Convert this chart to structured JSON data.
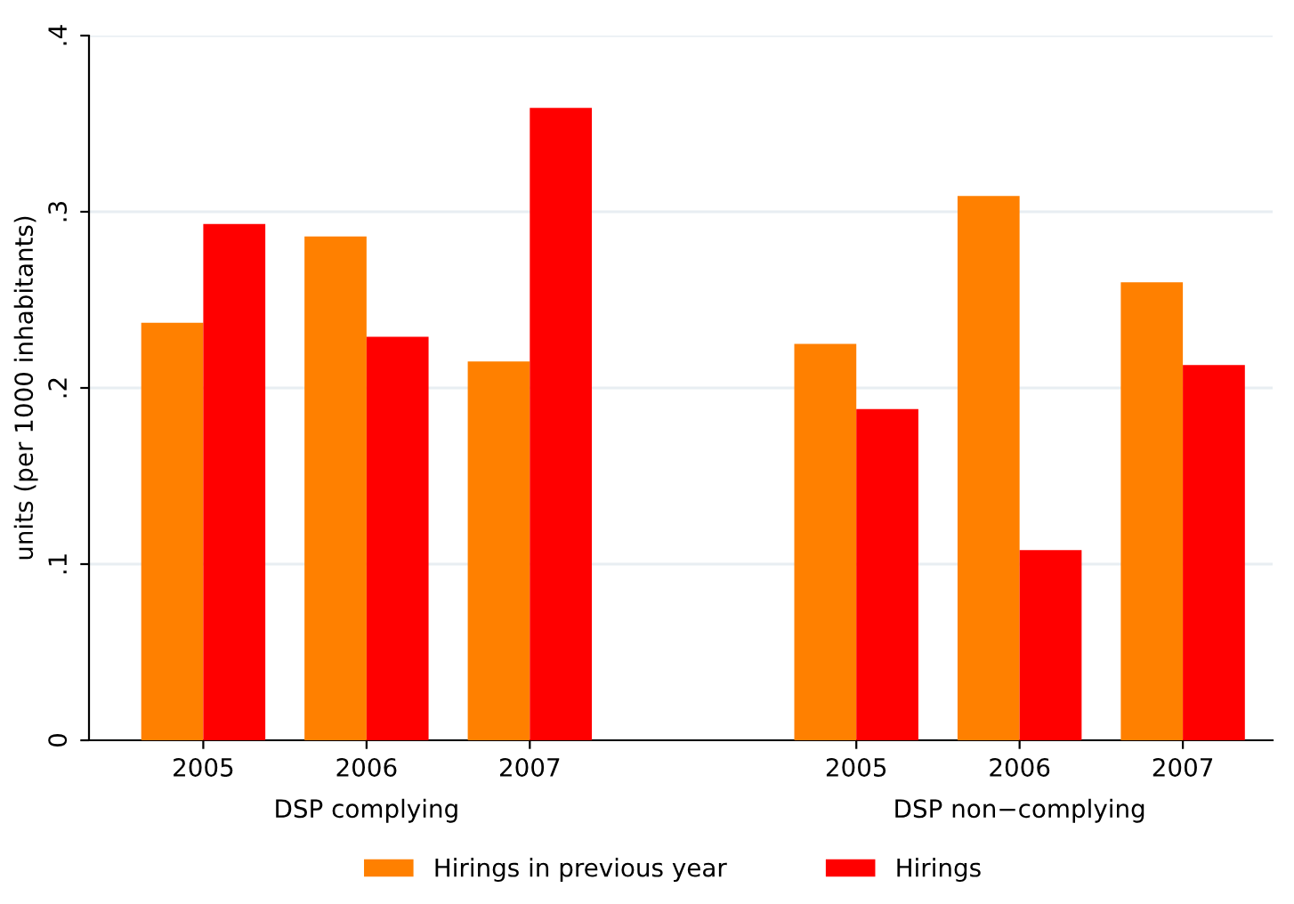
{
  "chart_data": {
    "type": "bar",
    "ylabel": "units (per 1000 inhabitants)",
    "categories": [
      "2005",
      "2006",
      "2007",
      null,
      "2005",
      "2006",
      "2007"
    ],
    "series": [
      {
        "name": "Hirings in previous year",
        "color": "#ff8000",
        "values": [
          0.237,
          0.286,
          0.215,
          null,
          0.225,
          0.309,
          0.26
        ]
      },
      {
        "name": "Hirings",
        "color": "#ff0000",
        "values": [
          0.293,
          0.229,
          0.359,
          null,
          0.188,
          0.108,
          0.213
        ]
      }
    ],
    "ylim": [
      0,
      0.4
    ],
    "yticks": [
      {
        "value": 0,
        "label": "0"
      },
      {
        "value": 0.1,
        "label": ".1"
      },
      {
        "value": 0.2,
        "label": ".2"
      },
      {
        "value": 0.3,
        "label": ".3"
      },
      {
        "value": 0.4,
        "label": ".4"
      }
    ],
    "annotations": [
      "DSP complying",
      "DSP non−complying"
    ],
    "grid": "y",
    "legend": "bottom"
  }
}
